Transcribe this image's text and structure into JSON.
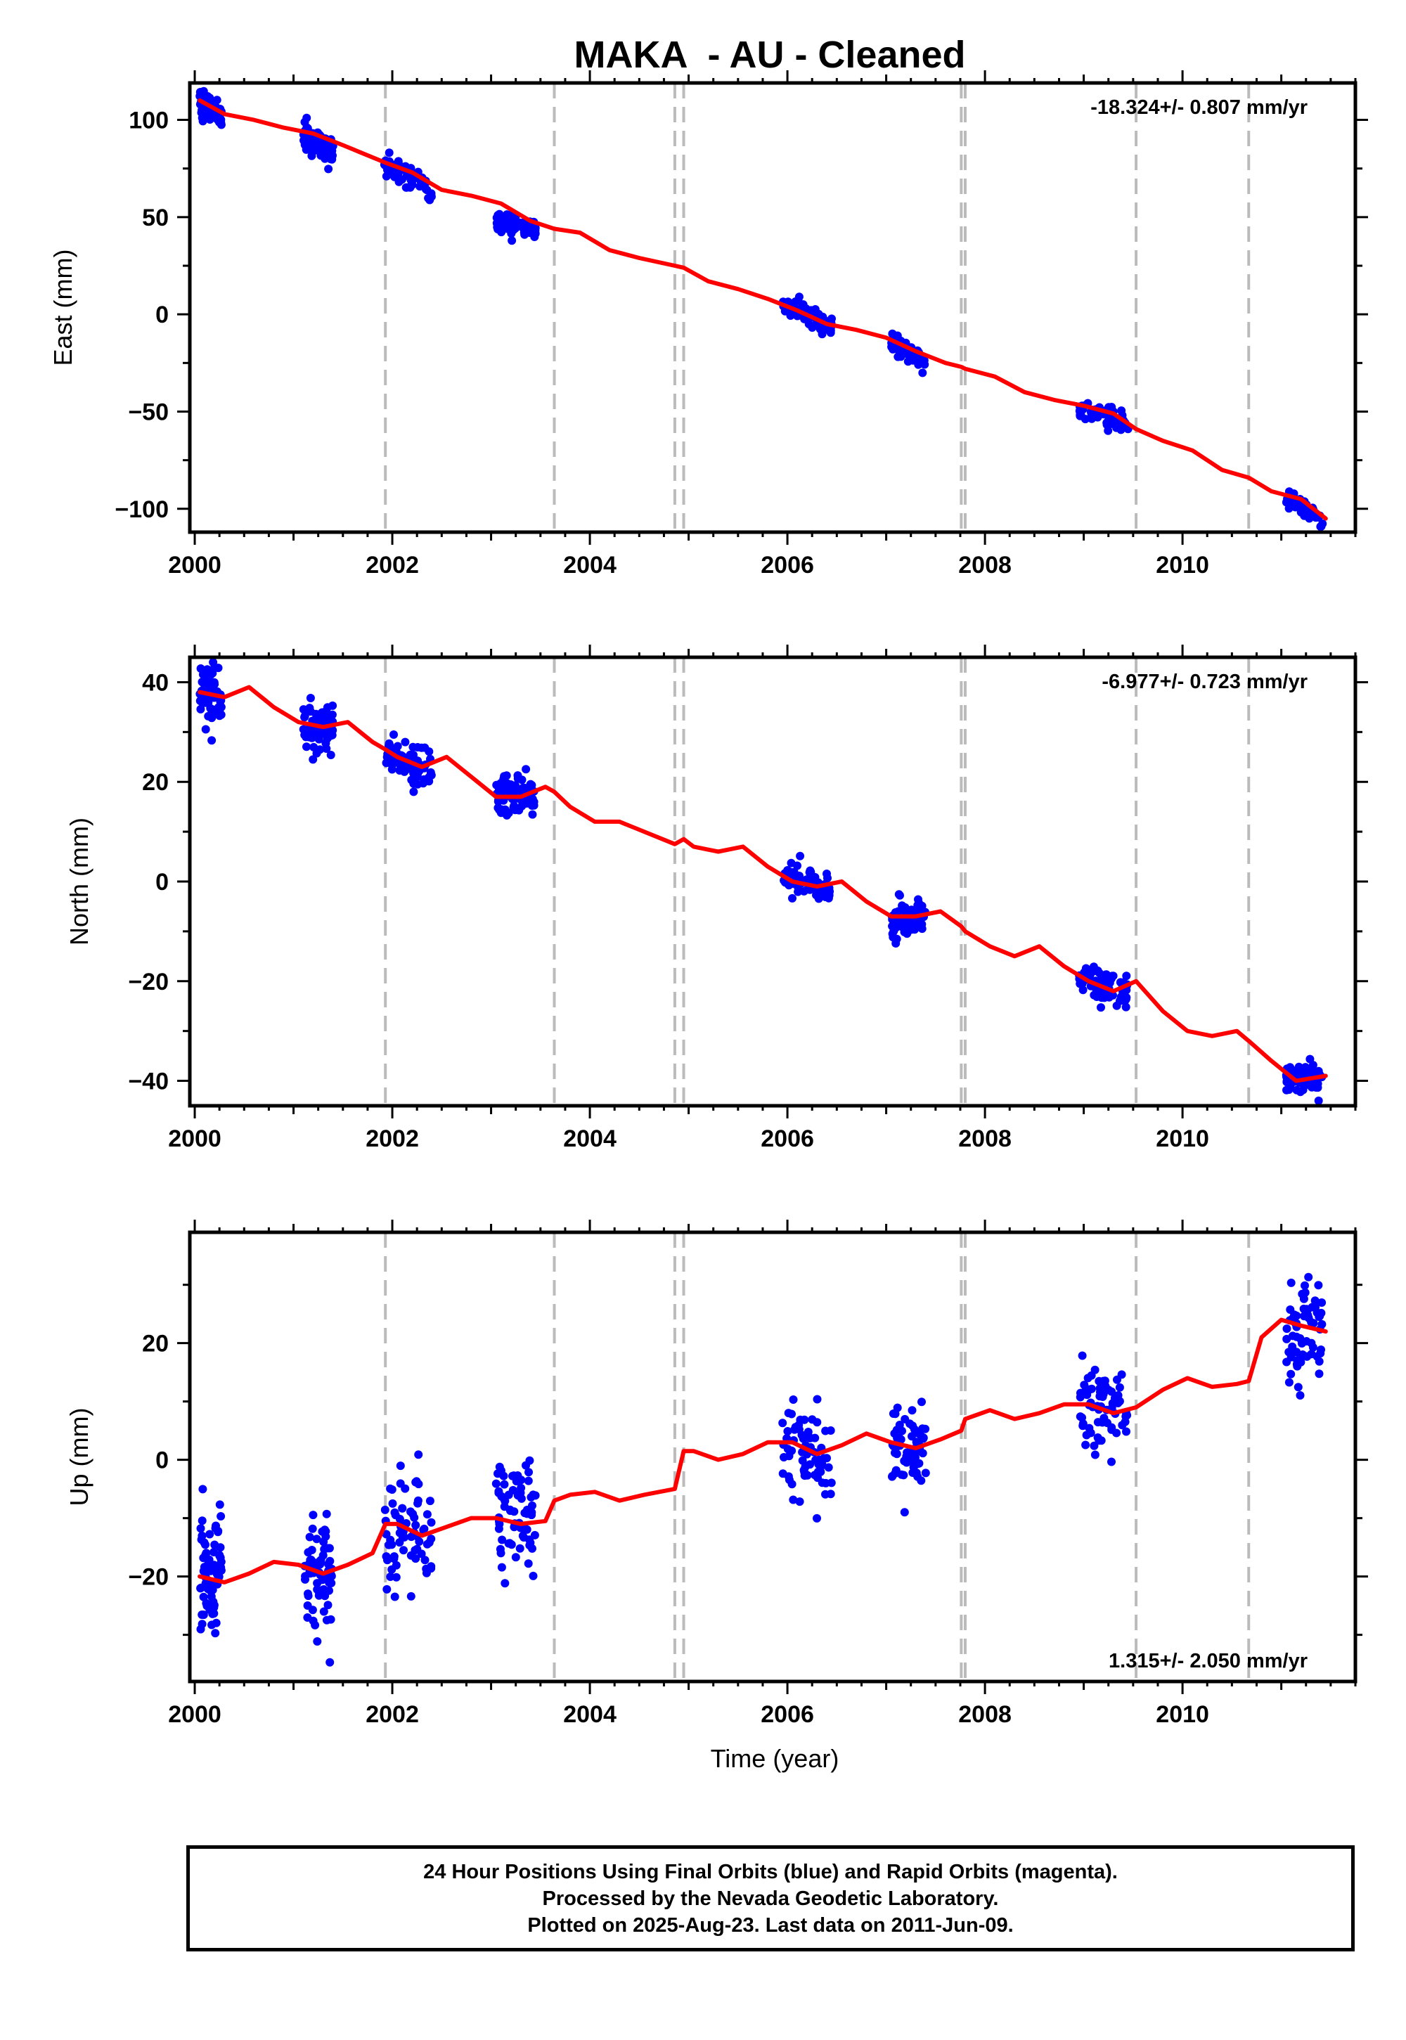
{
  "figure": {
    "title": "MAKA  - AU - Cleaned",
    "caption_lines": [
      "24 Hour Positions Using Final Orbits (blue) and Rapid Orbits (magenta).",
      "Processed by the Nevada Geodetic Laboratory.",
      "Plotted on 2025-Aug-23. Last data on 2011-Jun-09."
    ],
    "colors": {
      "data": "#0000ff",
      "model": "#ff0000",
      "steps": "#bbbbbb"
    }
  },
  "chart_data": [
    {
      "type": "scatter",
      "id": "east",
      "ylabel": "East (mm)",
      "xlabel": "",
      "xlim": [
        1999.95,
        2011.75
      ],
      "ylim": [
        -112,
        119
      ],
      "xticks": [
        2000,
        2002,
        2004,
        2006,
        2008,
        2010
      ],
      "yticks": [
        -100,
        -50,
        0,
        50,
        100
      ],
      "rate_label": "-18.324+/- 0.807 mm/yr",
      "rate_position": "top-right",
      "grid": false,
      "step_epochs": [
        2001.93,
        2003.64,
        2004.86,
        2004.95,
        2007.76,
        2007.8,
        2009.53,
        2010.67
      ],
      "model_line": {
        "x": [
          2000.05,
          2000.3,
          2000.6,
          2000.9,
          2001.2,
          2001.5,
          2001.93,
          2002.2,
          2002.5,
          2002.8,
          2003.1,
          2003.4,
          2003.64,
          2003.9,
          2004.2,
          2004.5,
          2004.86,
          2004.95,
          2005.2,
          2005.5,
          2005.8,
          2006.1,
          2006.4,
          2006.7,
          2007.0,
          2007.3,
          2007.6,
          2007.76,
          2007.8,
          2008.1,
          2008.4,
          2008.7,
          2009.0,
          2009.3,
          2009.53,
          2009.8,
          2010.1,
          2010.4,
          2010.67,
          2010.9,
          2011.2,
          2011.45
        ],
        "y": [
          110,
          103,
          100,
          96,
          93,
          87,
          78,
          73,
          64,
          61,
          57,
          48,
          44,
          42,
          33,
          29,
          25,
          24,
          17,
          13,
          8,
          2,
          -5,
          -8,
          -12,
          -19,
          -25,
          -27,
          -28,
          -32,
          -40,
          -44,
          -47,
          -51,
          -59,
          -65,
          -70,
          -80,
          -84,
          -91,
          -95,
          -105
        ]
      },
      "data_clusters": [
        {
          "x_range": [
            2000.05,
            2000.27
          ],
          "trend": [
            109,
            103
          ],
          "spread": 3.5
        },
        {
          "x_range": [
            2001.1,
            2001.4
          ],
          "trend": [
            92,
            84
          ],
          "spread": 3
        },
        {
          "x_range": [
            2001.92,
            2002.4
          ],
          "trend": [
            78,
            64
          ],
          "spread": 3
        },
        {
          "x_range": [
            2003.05,
            2003.45
          ],
          "trend": [
            48,
            44
          ],
          "spread": 2.5
        },
        {
          "x_range": [
            2005.95,
            2006.45
          ],
          "trend": [
            6,
            -7
          ],
          "spread": 2.5
        },
        {
          "x_range": [
            2007.05,
            2007.4
          ],
          "trend": [
            -15,
            -24
          ],
          "spread": 2.5
        },
        {
          "x_range": [
            2008.95,
            2009.45
          ],
          "trend": [
            -47,
            -57
          ],
          "spread": 2.5
        },
        {
          "x_range": [
            2011.05,
            2011.42
          ],
          "trend": [
            -95,
            -106
          ],
          "spread": 2
        }
      ]
    },
    {
      "type": "scatter",
      "id": "north",
      "ylabel": "North (mm)",
      "xlabel": "",
      "xlim": [
        1999.95,
        2011.75
      ],
      "ylim": [
        -45,
        45
      ],
      "xticks": [
        2000,
        2002,
        2004,
        2006,
        2008,
        2010
      ],
      "yticks": [
        -40,
        -20,
        0,
        20,
        40
      ],
      "rate_label": "-6.977+/- 0.723 mm/yr",
      "rate_position": "top-right",
      "grid": false,
      "step_epochs": [
        2001.93,
        2003.64,
        2004.86,
        2004.95,
        2007.76,
        2007.8,
        2009.53,
        2010.67
      ],
      "model_line": {
        "x": [
          2000.05,
          2000.3,
          2000.55,
          2000.8,
          2001.05,
          2001.3,
          2001.55,
          2001.8,
          2001.93,
          2002.05,
          2002.3,
          2002.55,
          2002.8,
          2003.05,
          2003.3,
          2003.55,
          2003.64,
          2003.8,
          2004.05,
          2004.3,
          2004.55,
          2004.86,
          2004.95,
          2005.05,
          2005.3,
          2005.55,
          2005.8,
          2006.05,
          2006.3,
          2006.55,
          2006.8,
          2007.05,
          2007.3,
          2007.55,
          2007.76,
          2007.8,
          2008.05,
          2008.3,
          2008.55,
          2008.8,
          2009.05,
          2009.3,
          2009.53,
          2009.8,
          2010.05,
          2010.3,
          2010.55,
          2010.67,
          2010.9,
          2011.15,
          2011.45
        ],
        "y": [
          38,
          37,
          39,
          35,
          32,
          31,
          32,
          28,
          26.5,
          25,
          23,
          25,
          21,
          17,
          17,
          19,
          18,
          15,
          12,
          12,
          10,
          7.5,
          8.5,
          7,
          6,
          7,
          3,
          0,
          -1,
          0,
          -4,
          -7,
          -7,
          -6,
          -9,
          -10,
          -13,
          -15,
          -13,
          -17,
          -20,
          -22,
          -20,
          -26,
          -30,
          -31,
          -30,
          -32,
          -36,
          -40,
          -39
        ]
      },
      "data_clusters": [
        {
          "x_range": [
            2000.05,
            2000.27
          ],
          "trend": [
            39,
            36
          ],
          "spread": 3
        },
        {
          "x_range": [
            2001.1,
            2001.4
          ],
          "trend": [
            32,
            30
          ],
          "spread": 2.5
        },
        {
          "x_range": [
            2001.92,
            2002.4
          ],
          "trend": [
            26,
            22
          ],
          "spread": 2.5
        },
        {
          "x_range": [
            2003.05,
            2003.45
          ],
          "trend": [
            17,
            17
          ],
          "spread": 2.5
        },
        {
          "x_range": [
            2005.95,
            2006.45
          ],
          "trend": [
            1,
            -1
          ],
          "spread": 1.8
        },
        {
          "x_range": [
            2007.05,
            2007.4
          ],
          "trend": [
            -8,
            -6
          ],
          "spread": 2
        },
        {
          "x_range": [
            2008.95,
            2009.45
          ],
          "trend": [
            -20,
            -22
          ],
          "spread": 1.8
        },
        {
          "x_range": [
            2011.05,
            2011.42
          ],
          "trend": [
            -39,
            -40
          ],
          "spread": 1.5
        }
      ]
    },
    {
      "type": "scatter",
      "id": "up",
      "ylabel": "Up (mm)",
      "xlabel": "Time (year)",
      "xlim": [
        1999.95,
        2011.75
      ],
      "ylim": [
        -38,
        39
      ],
      "xticks": [
        2000,
        2002,
        2004,
        2006,
        2008,
        2010
      ],
      "yticks": [
        -20,
        0,
        20
      ],
      "rate_label": "1.315+/- 2.050 mm/yr",
      "rate_position": "bottom-right",
      "grid": false,
      "step_epochs": [
        2001.93,
        2003.64,
        2004.86,
        2004.95,
        2007.76,
        2007.8,
        2009.53,
        2010.67
      ],
      "model_line": {
        "x": [
          2000.05,
          2000.3,
          2000.55,
          2000.8,
          2001.05,
          2001.3,
          2001.55,
          2001.8,
          2001.93,
          2002.05,
          2002.3,
          2002.55,
          2002.8,
          2003.05,
          2003.3,
          2003.55,
          2003.64,
          2003.8,
          2004.05,
          2004.3,
          2004.55,
          2004.86,
          2004.95,
          2005.05,
          2005.3,
          2005.55,
          2005.8,
          2006.05,
          2006.3,
          2006.55,
          2006.8,
          2007.05,
          2007.3,
          2007.55,
          2007.76,
          2007.8,
          2008.05,
          2008.3,
          2008.55,
          2008.8,
          2009.05,
          2009.3,
          2009.53,
          2009.8,
          2010.05,
          2010.3,
          2010.55,
          2010.67,
          2010.8,
          2011.0,
          2011.2,
          2011.45
        ],
        "y": [
          -20,
          -21,
          -19.5,
          -17.5,
          -18,
          -19.5,
          -18,
          -16,
          -11,
          -11,
          -13,
          -11.5,
          -10,
          -10,
          -11,
          -10.5,
          -7,
          -6,
          -5.5,
          -7,
          -6,
          -5,
          1.5,
          1.5,
          0,
          1,
          3,
          3,
          1,
          2.5,
          4.5,
          3,
          2,
          3.5,
          5,
          7,
          8.5,
          7,
          8,
          9.5,
          9.5,
          8,
          9,
          12,
          14,
          12.5,
          13,
          13.5,
          21,
          24,
          23,
          22
        ]
      },
      "data_clusters": [
        {
          "x_range": [
            2000.05,
            2000.27
          ],
          "trend": [
            -18,
            -20
          ],
          "spread": 5.5
        },
        {
          "x_range": [
            2001.1,
            2001.4
          ],
          "trend": [
            -19,
            -19
          ],
          "spread": 5.5
        },
        {
          "x_range": [
            2001.92,
            2002.4
          ],
          "trend": [
            -13,
            -12
          ],
          "spread": 5
        },
        {
          "x_range": [
            2003.05,
            2003.45
          ],
          "trend": [
            -8,
            -11
          ],
          "spread": 5
        },
        {
          "x_range": [
            2005.95,
            2006.45
          ],
          "trend": [
            3,
            0
          ],
          "spread": 4
        },
        {
          "x_range": [
            2007.05,
            2007.4
          ],
          "trend": [
            3,
            2
          ],
          "spread": 3.5
        },
        {
          "x_range": [
            2008.95,
            2009.45
          ],
          "trend": [
            9,
            9
          ],
          "spread": 4
        },
        {
          "x_range": [
            2011.05,
            2011.42
          ],
          "trend": [
            22,
            23
          ],
          "spread": 4
        }
      ]
    }
  ]
}
